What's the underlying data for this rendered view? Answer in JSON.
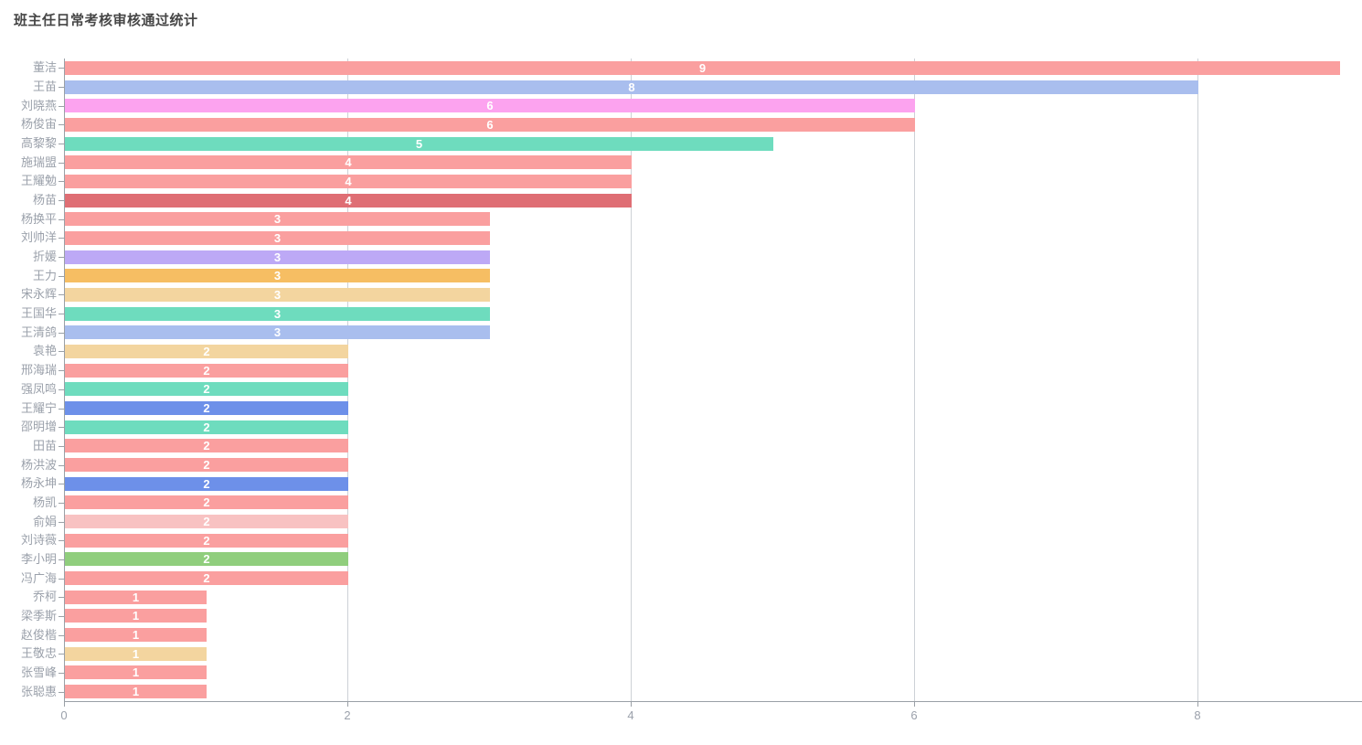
{
  "title": "班主任日常考核审核通过统计",
  "colors": {
    "background": "#ffffff",
    "title_text": "#464646",
    "axis_line": "#9aa0a6",
    "grid_line": "#cdd1d6",
    "axis_label_text": "#9ba1ab",
    "bar_value_label_text": "#ffffff"
  },
  "chart_data": {
    "type": "bar",
    "orientation": "horizontal",
    "title": "班主任日常考核审核通过统计",
    "xlabel": "",
    "ylabel": "",
    "grid": true,
    "legend": false,
    "value_label_position": "inside-center",
    "xlim": [
      0,
      9.2
    ],
    "x_ticks": [
      0,
      2,
      4,
      6,
      8
    ],
    "categories": [
      "董洁",
      "王苗",
      "刘晓燕",
      "杨俊宙",
      "高黎黎",
      "施瑞盟",
      "王耀勉",
      "杨苗",
      "杨换平",
      "刘帅洋",
      "折媛",
      "王力",
      "宋永辉",
      "王国华",
      "王清鸽",
      "袁艳",
      "邢海瑞",
      "强凤鸣",
      "王耀宁",
      "邵明增",
      "田苗",
      "杨洪波",
      "杨永坤",
      "杨凯",
      "俞娟",
      "刘诗薇",
      "李小明",
      "冯广海",
      "乔柯",
      "梁季斯",
      "赵俊楷",
      "王敬忠",
      "张雪峰",
      "张聪惠"
    ],
    "values": [
      9,
      8,
      6,
      6,
      5,
      4,
      4,
      4,
      3,
      3,
      3,
      3,
      3,
      3,
      3,
      2,
      2,
      2,
      2,
      2,
      2,
      2,
      2,
      2,
      2,
      2,
      2,
      2,
      1,
      1,
      1,
      1,
      1,
      1
    ],
    "bar_colors": [
      "#fa9f9f",
      "#a9beee",
      "#fca3ef",
      "#fa9f9f",
      "#6edcbe",
      "#fa9f9f",
      "#fa9f9f",
      "#df6e74",
      "#fa9f9f",
      "#fa9f9f",
      "#bda9f6",
      "#f6be63",
      "#f3d59f",
      "#6edcbe",
      "#a9beee",
      "#f3d59f",
      "#fa9f9f",
      "#6edcbe",
      "#6d90e9",
      "#6edcbe",
      "#fa9f9f",
      "#fa9f9f",
      "#6d90e9",
      "#fa9f9f",
      "#f8c2c2",
      "#fa9f9f",
      "#90ce7d",
      "#fa9f9f",
      "#fa9f9f",
      "#fa9f9f",
      "#fa9f9f",
      "#f3d59f",
      "#fa9f9f",
      "#fa9f9f"
    ]
  }
}
